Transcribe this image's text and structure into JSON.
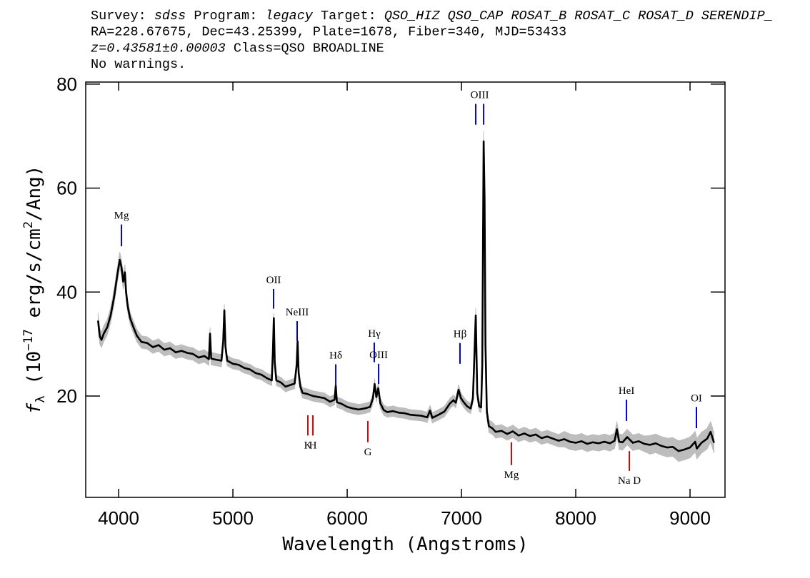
{
  "chart_data": {
    "type": "line",
    "header": [
      [
        {
          "text": "Survey: "
        },
        {
          "text": "sdss",
          "italic": true
        },
        {
          "text": " Program: "
        },
        {
          "text": "legacy",
          "italic": true
        },
        {
          "text": " Target: "
        },
        {
          "text": "QSO_HIZ QSO_CAP ROSAT_B ROSAT_C ROSAT_D SERENDIP_",
          "italic": true
        }
      ],
      [
        {
          "text": "RA=228.67675, Dec=43.25399, Plate=1678, Fiber=340, MJD=53433"
        }
      ],
      [
        {
          "text": "z=0.43581±0.00003",
          "italic": true
        },
        {
          "text": " Class=QSO BROADLINE"
        }
      ],
      [
        {
          "text": "No warnings."
        }
      ]
    ],
    "xlabel": "Wavelength (Angstroms)",
    "ylabel": [
      {
        "text": "f",
        "italic": true
      },
      {
        "text": "λ",
        "shift": "sub"
      },
      {
        "text": " (10"
      },
      {
        "text": "−17",
        "shift": "super"
      },
      {
        "text": " erg/s/cm"
      },
      {
        "text": "2",
        "shift": "super"
      },
      {
        "text": "/Ang)"
      }
    ],
    "xlim": [
      3712,
      9306
    ],
    "ylim": [
      0.5,
      80.4
    ],
    "xticks": [
      4000,
      5000,
      6000,
      7000,
      8000,
      9000
    ],
    "yticks": [
      20,
      40,
      60,
      80
    ],
    "color": "#000000",
    "error_color": "#bdbdbd",
    "emission_color": "#0000cc",
    "absorption_color": "#dd0000",
    "x": [
      3820,
      3835,
      3850,
      3870,
      3900,
      3930,
      3960,
      3990,
      4010,
      4025,
      4040,
      4055,
      4065,
      4080,
      4100,
      4130,
      4160,
      4200,
      4250,
      4300,
      4350,
      4400,
      4450,
      4500,
      4550,
      4600,
      4650,
      4700,
      4750,
      4790,
      4800,
      4810,
      4850,
      4900,
      4915,
      4925,
      4935,
      4950,
      5000,
      5050,
      5100,
      5150,
      5200,
      5250,
      5300,
      5340,
      5350,
      5358,
      5366,
      5380,
      5420,
      5460,
      5500,
      5540,
      5558,
      5566,
      5575,
      5590,
      5610,
      5650,
      5700,
      5750,
      5800,
      5850,
      5890,
      5900,
      5910,
      5950,
      6000,
      6050,
      6100,
      6150,
      6200,
      6225,
      6240,
      6255,
      6272,
      6290,
      6320,
      6350,
      6400,
      6450,
      6500,
      6550,
      6600,
      6650,
      6700,
      6725,
      6745,
      6800,
      6850,
      6900,
      6930,
      6950,
      6975,
      6995,
      7020,
      7050,
      7080,
      7100,
      7112,
      7125,
      7138,
      7155,
      7172,
      7182,
      7194,
      7202,
      7210,
      7222,
      7240,
      7270,
      7300,
      7350,
      7400,
      7450,
      7500,
      7550,
      7600,
      7650,
      7700,
      7750,
      7800,
      7850,
      7900,
      7950,
      8000,
      8050,
      8100,
      8150,
      8200,
      8250,
      8300,
      8340,
      8360,
      8380,
      8410,
      8450,
      8500,
      8550,
      8600,
      8650,
      8700,
      8750,
      8800,
      8850,
      8900,
      8950,
      9000,
      9045,
      9060,
      9100,
      9150,
      9180,
      9210
    ],
    "values": [
      34.5,
      31.5,
      30.8,
      32,
      33.2,
      35.5,
      39,
      43.5,
      46.2,
      44.8,
      42,
      43.8,
      40,
      37.2,
      35,
      33.2,
      31.6,
      30.4,
      30.2,
      29.4,
      29.8,
      28.9,
      29.2,
      28.4,
      28.7,
      28.3,
      28.1,
      27.4,
      27.7,
      27.1,
      32,
      27.2,
      27,
      26.8,
      30.5,
      36.5,
      29.5,
      26.8,
      26.2,
      26,
      25.4,
      25.1,
      24.4,
      24.1,
      23.4,
      23,
      28.5,
      35,
      26.5,
      23,
      22.6,
      21.8,
      22.1,
      22.4,
      26,
      30.5,
      24.5,
      21.8,
      20.6,
      20.4,
      20,
      19.8,
      19.6,
      18.9,
      19.3,
      22,
      18.8,
      18.5,
      17.9,
      17.6,
      17.4,
      17.6,
      17.9,
      19.5,
      22.3,
      19.8,
      21.5,
      18.6,
      17.3,
      16.9,
      17.1,
      16.8,
      16.7,
      16.4,
      16.3,
      16.2,
      15.9,
      17.2,
      15.8,
      16.4,
      17,
      18.6,
      19.2,
      18.7,
      21.2,
      19.6,
      18.8,
      18,
      17.6,
      19.5,
      27,
      35.5,
      20.5,
      18,
      17.8,
      26,
      69,
      58,
      30,
      17,
      14.2,
      13.8,
      13.1,
      13.3,
      12.7,
      13.2,
      12.4,
      12.8,
      12.3,
      12.6,
      11.9,
      12.2,
      11.8,
      11.4,
      11.7,
      11.2,
      11,
      11.3,
      10.8,
      11.1,
      10.9,
      11.2,
      10.9,
      11.4,
      13.6,
      11.2,
      11.1,
      12.1,
      11,
      11.3,
      10.8,
      10.6,
      10.9,
      10.4,
      10.1,
      10.2,
      9.4,
      9.7,
      10.1,
      11.2,
      9.9,
      11,
      11.8,
      13.1,
      11
    ],
    "errors": [
      1.5,
      1.5,
      1.5,
      1.5,
      1.5,
      1.5,
      1.5,
      1.5,
      1.5,
      1.5,
      1.5,
      1.5,
      1.5,
      1.2,
      1.2,
      1.2,
      1.2,
      1.2,
      1.2,
      1.2,
      1.2,
      1.2,
      1.2,
      1.2,
      1.2,
      1.2,
      1.2,
      1.2,
      1.2,
      1.2,
      1.2,
      1.2,
      1.2,
      1.2,
      1.2,
      1.2,
      1.2,
      1,
      1,
      1,
      1,
      1,
      1,
      1,
      1,
      1,
      1,
      1,
      1,
      1,
      1,
      1,
      1,
      1,
      1,
      1,
      1,
      1,
      1,
      1,
      1,
      1,
      1,
      1,
      1,
      1,
      1,
      1,
      1,
      1,
      1,
      1,
      1,
      1,
      1,
      1,
      1,
      1,
      1,
      1,
      1,
      1,
      1,
      1,
      1,
      1,
      1,
      1,
      1,
      1,
      1,
      1,
      1,
      1,
      1,
      1,
      1,
      1,
      1,
      1,
      1.2,
      1.5,
      1.2,
      1,
      1,
      1.5,
      2,
      2,
      1.5,
      1.2,
      1.2,
      1.2,
      1.2,
      1.2,
      1.2,
      1.2,
      1.2,
      1.2,
      1.2,
      1.2,
      1.2,
      1.2,
      1.2,
      1.2,
      1.5,
      1.5,
      1.5,
      1.5,
      1.5,
      1.5,
      1.5,
      1.5,
      1.5,
      1.5,
      1.5,
      1.5,
      1.5,
      1.5,
      1.5,
      1.5,
      1.5,
      1.8,
      1.8,
      1.8,
      1.8,
      1.8,
      2,
      2,
      2,
      2,
      2,
      2,
      2,
      2,
      2
    ],
    "lines": [
      {
        "label": "Mg",
        "kind": "emission",
        "wavelengths": [
          4025
        ],
        "span": [
          48.8,
          53.0
        ]
      },
      {
        "label": "OII",
        "kind": "emission",
        "wavelengths": [
          5356
        ],
        "span": [
          36.8,
          40.6
        ]
      },
      {
        "label": "NeIII",
        "kind": "emission",
        "wavelengths": [
          5562
        ],
        "span": [
          30.6,
          34.4
        ]
      },
      {
        "label": "Hδ",
        "kind": "emission",
        "wavelengths": [
          5900
        ],
        "span": [
          21.9,
          26.1
        ]
      },
      {
        "label": "Hγ",
        "kind": "emission",
        "wavelengths": [
          6237
        ],
        "span": [
          26.5,
          30.3
        ]
      },
      {
        "label": "OIII",
        "kind": "emission",
        "wavelengths": [
          6275
        ],
        "span": [
          22.3,
          26.2
        ]
      },
      {
        "label": "Hβ",
        "kind": "emission",
        "wavelengths": [
          6987
        ],
        "span": [
          26.2,
          30.2
        ]
      },
      {
        "label": "OIII",
        "kind": "emission",
        "wavelengths": [
          7125,
          7194
        ],
        "span": [
          72.2,
          76.2
        ]
      },
      {
        "label": "HeI",
        "kind": "emission",
        "wavelengths": [
          8444
        ],
        "span": [
          15.2,
          19.3
        ]
      },
      {
        "label": "OI",
        "kind": "emission",
        "wavelengths": [
          9056
        ],
        "span": [
          13.8,
          17.9
        ]
      },
      {
        "label": "K",
        "kind": "absorption",
        "wavelengths": [
          5656
        ],
        "span": [
          12.4,
          16.3
        ]
      },
      {
        "label": "H",
        "kind": "absorption",
        "wavelengths": [
          5700
        ],
        "span": [
          12.4,
          16.3
        ]
      },
      {
        "label": "G",
        "kind": "absorption",
        "wavelengths": [
          6181
        ],
        "span": [
          11.1,
          15.2
        ]
      },
      {
        "label": "Mg",
        "kind": "absorption",
        "wavelengths": [
          7437
        ],
        "span": [
          6.7,
          11.1
        ]
      },
      {
        "label": "Na D",
        "kind": "absorption",
        "wavelengths": [
          8469
        ],
        "span": [
          5.6,
          9.4
        ]
      }
    ]
  }
}
